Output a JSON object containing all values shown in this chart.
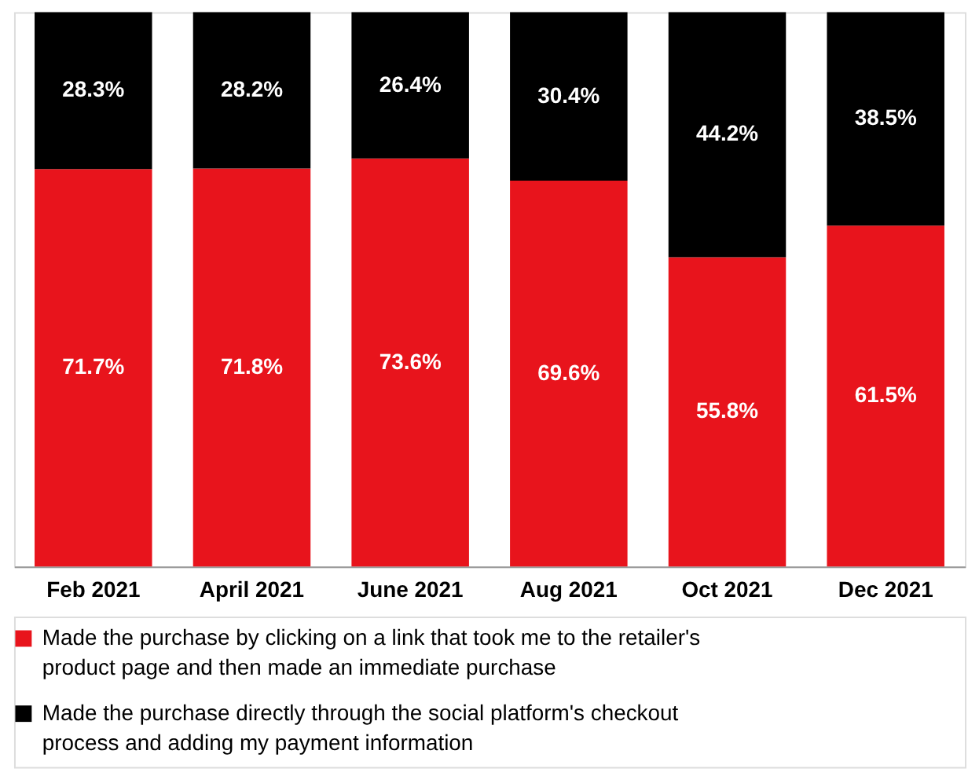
{
  "chart_data": {
    "type": "bar",
    "stacked": true,
    "legend": "bottom",
    "categories": [
      "Feb 2021",
      "April 2021",
      "June 2021",
      "Aug 2021",
      "Oct 2021",
      "Dec 2021"
    ],
    "series": [
      {
        "name": "Made the purchase by clicking on a link that took me to the retailer's product page and then made an immediate purchase",
        "color": "#e8141c",
        "values": [
          71.7,
          71.8,
          73.6,
          69.6,
          55.8,
          61.5
        ],
        "value_labels": [
          "71.7%",
          "71.8%",
          "73.6%",
          "69.6%",
          "55.8%",
          "61.5%"
        ]
      },
      {
        "name": "Made the purchase directly through the social platform's checkout process and adding my payment information",
        "color": "#000000",
        "values": [
          28.3,
          28.2,
          26.4,
          30.4,
          44.2,
          38.5
        ],
        "value_labels": [
          "28.3%",
          "28.2%",
          "26.4%",
          "30.4%",
          "44.2%",
          "38.5%"
        ]
      }
    ]
  }
}
